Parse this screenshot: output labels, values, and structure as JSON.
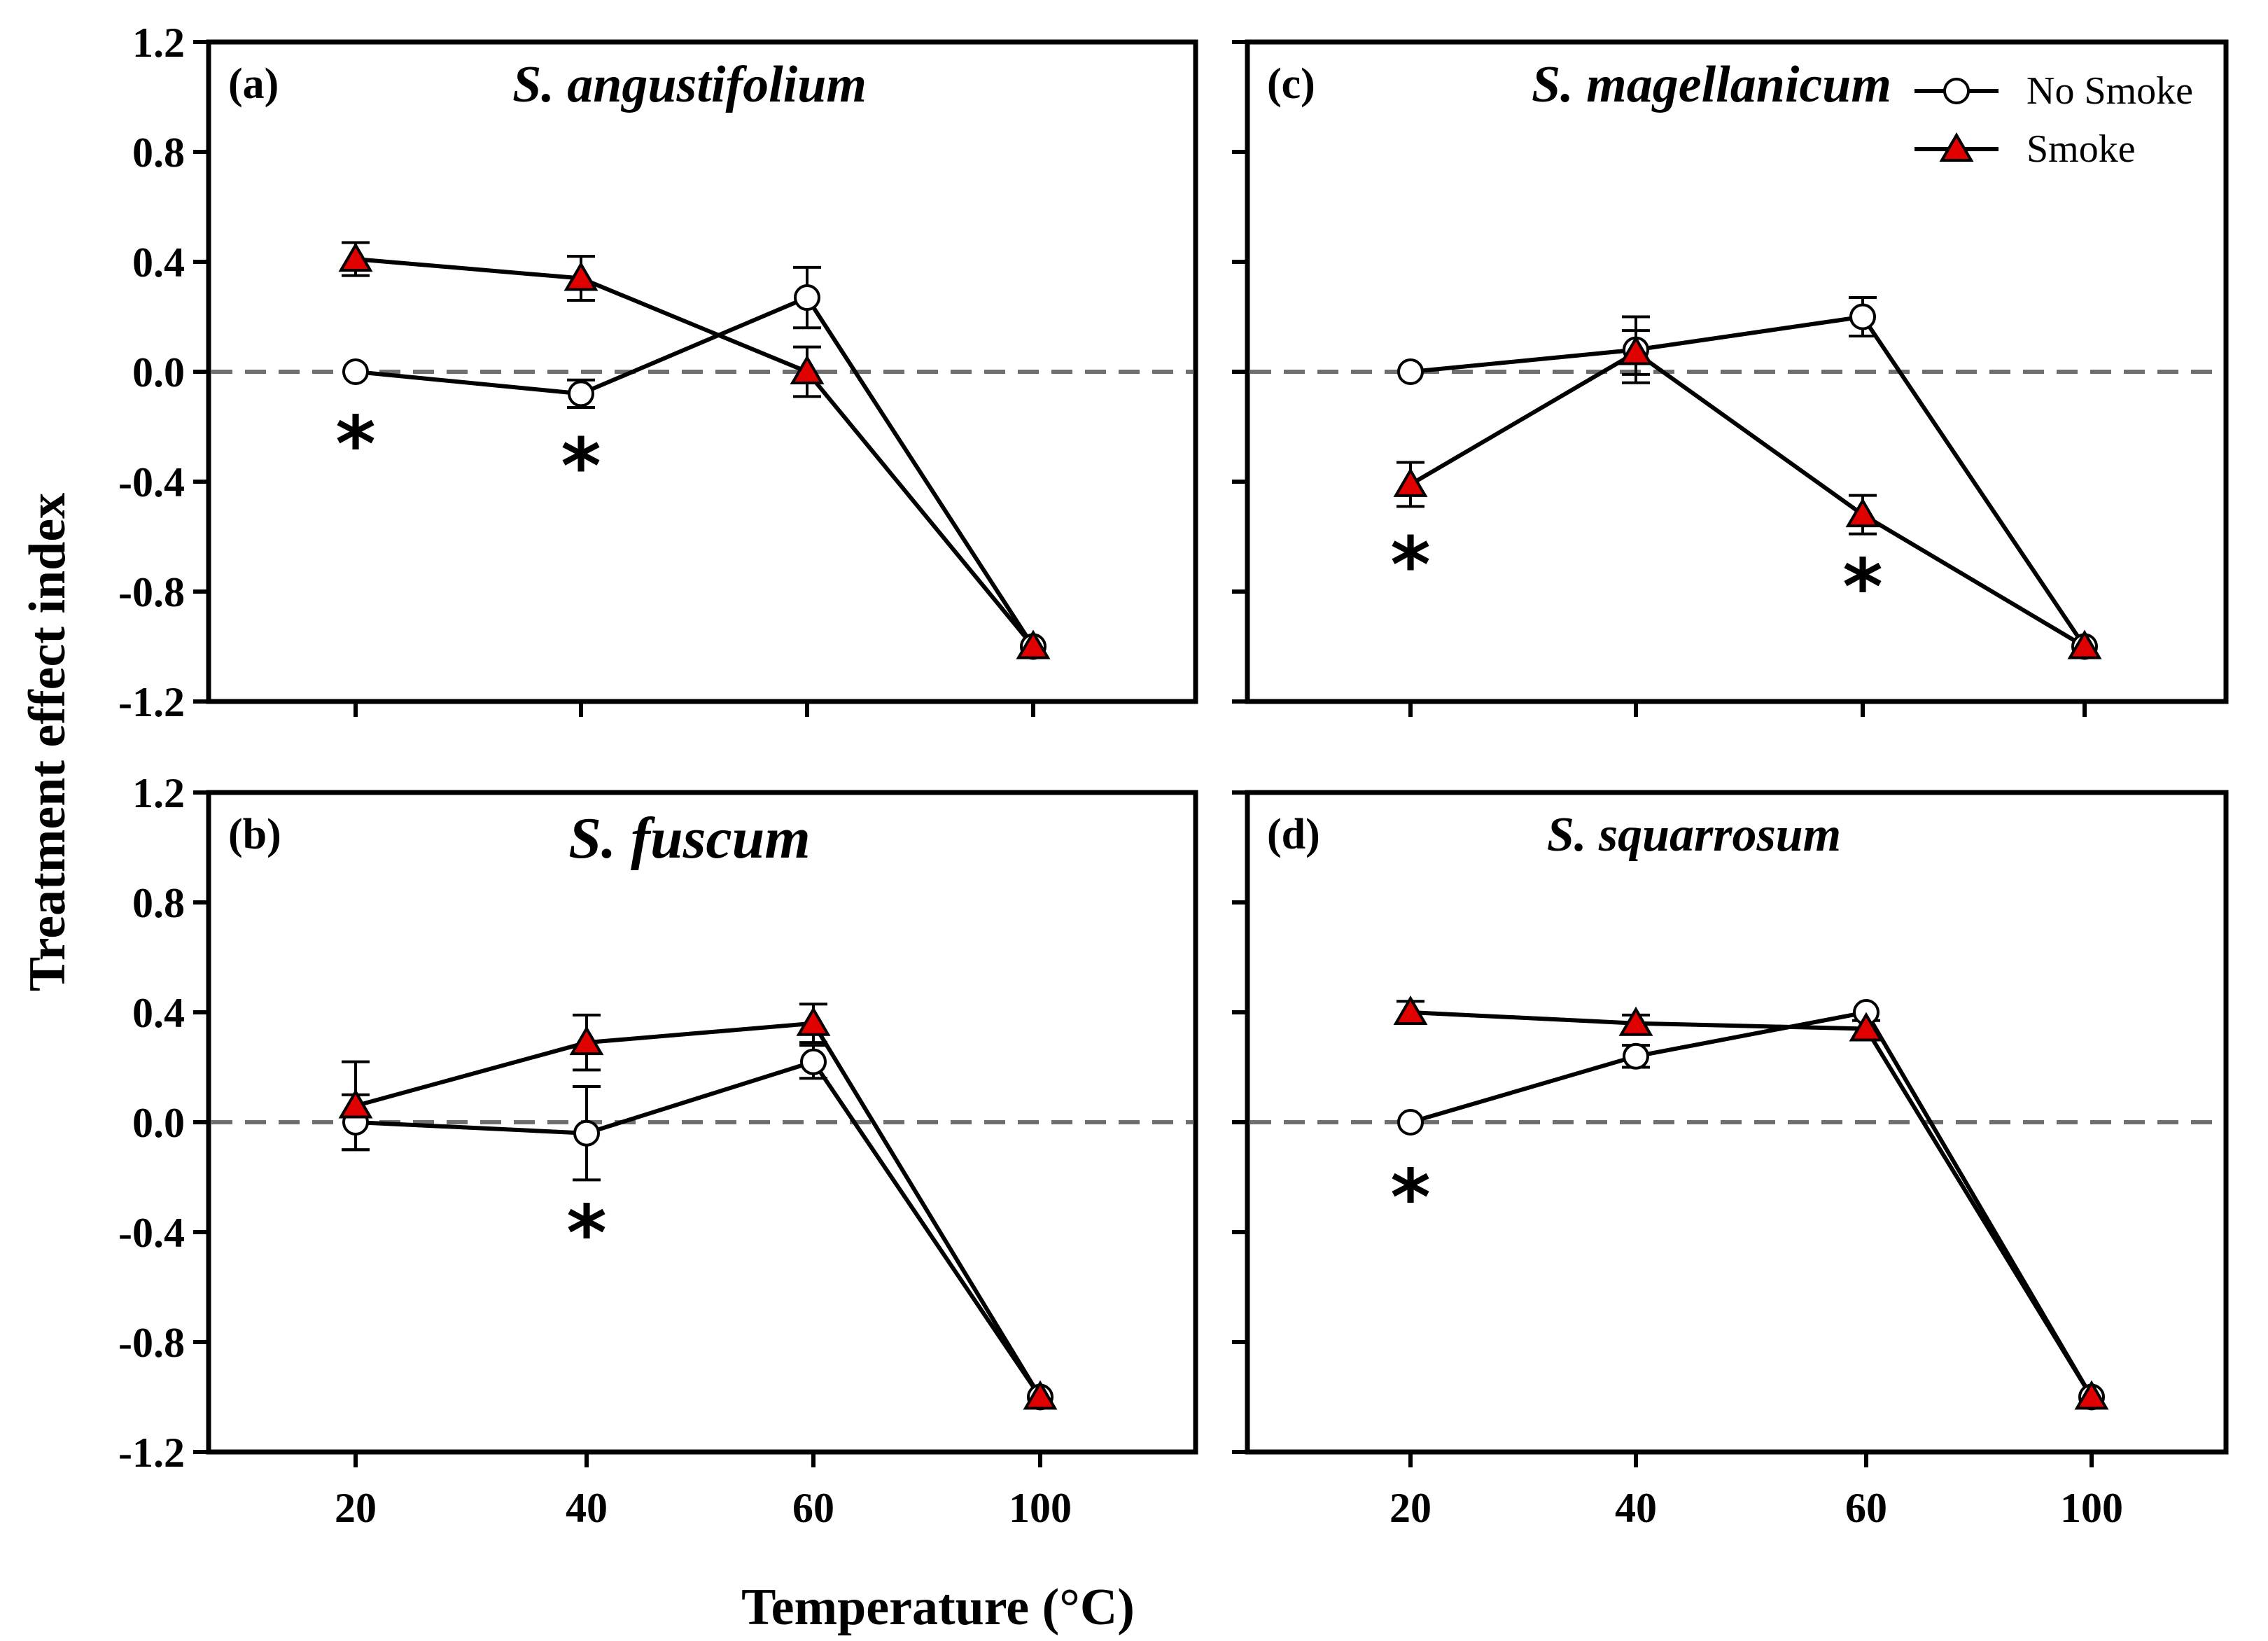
{
  "chart_data": [
    {
      "type": "line",
      "panel": "(a)",
      "title": "S. angustifolium",
      "categories": [
        "20",
        "40",
        "60",
        "100"
      ],
      "ylim": [
        -1.2,
        1.2
      ],
      "yticks": [
        "1.2",
        "0.8",
        "0.4",
        "0.0",
        "-0.4",
        "-0.8",
        "-1.2"
      ],
      "reference_line": 0.0,
      "series": [
        {
          "name": "No Smoke",
          "values": [
            0.0,
            -0.08,
            0.27,
            -1.0
          ],
          "errors": [
            0.02,
            0.05,
            0.11,
            0.02
          ]
        },
        {
          "name": "Smoke",
          "values": [
            0.41,
            0.34,
            0.0,
            -1.0
          ],
          "errors": [
            0.06,
            0.08,
            0.09,
            0.02
          ]
        }
      ],
      "significance": [
        {
          "category": "20",
          "value": -0.22,
          "label": "*"
        },
        {
          "category": "40",
          "value": -0.3,
          "label": "*"
        }
      ]
    },
    {
      "type": "line",
      "panel": "(b)",
      "title": "S. fuscum",
      "categories": [
        "20",
        "40",
        "60",
        "100"
      ],
      "ylim": [
        -1.2,
        1.2
      ],
      "yticks": [
        "1.2",
        "0.8",
        "0.4",
        "0.0",
        "-0.4",
        "-0.8",
        "-1.2"
      ],
      "reference_line": 0.0,
      "series": [
        {
          "name": "No Smoke",
          "values": [
            0.0,
            -0.04,
            0.22,
            -1.0
          ],
          "errors": [
            0.1,
            0.17,
            0.06,
            0.02
          ]
        },
        {
          "name": "Smoke",
          "values": [
            0.06,
            0.29,
            0.36,
            -1.0
          ],
          "errors": [
            0.16,
            0.1,
            0.07,
            0.02
          ]
        }
      ],
      "significance": [
        {
          "category": "40",
          "value": -0.36,
          "label": "*"
        }
      ]
    },
    {
      "type": "line",
      "panel": "(c)",
      "title": "S. magellanicum",
      "categories": [
        "20",
        "40",
        "60",
        "100"
      ],
      "ylim": [
        -1.2,
        1.2
      ],
      "yticks": [
        "1.2",
        "0.8",
        "0.4",
        "0.0",
        "-0.4",
        "-0.8",
        "-1.2"
      ],
      "reference_line": 0.0,
      "series": [
        {
          "name": "No Smoke",
          "values": [
            0.0,
            0.08,
            0.2,
            -1.0
          ],
          "errors": [
            0.02,
            0.12,
            0.07,
            0.02
          ]
        },
        {
          "name": "Smoke",
          "values": [
            -0.41,
            0.07,
            -0.52,
            -1.0
          ],
          "errors": [
            0.08,
            0.08,
            0.07,
            0.02
          ]
        }
      ],
      "significance": [
        {
          "category": "20",
          "value": -0.66,
          "label": "*"
        },
        {
          "category": "60",
          "value": -0.74,
          "label": "*"
        }
      ]
    },
    {
      "type": "line",
      "panel": "(d)",
      "title": "S. squarrosum",
      "categories": [
        "20",
        "40",
        "60",
        "100"
      ],
      "ylim": [
        -1.2,
        1.2
      ],
      "yticks": [
        "1.2",
        "0.8",
        "0.4",
        "0.0",
        "-0.4",
        "-0.8",
        "-1.2"
      ],
      "reference_line": 0.0,
      "series": [
        {
          "name": "No Smoke",
          "values": [
            0.0,
            0.24,
            0.4,
            -1.0
          ],
          "errors": [
            0.01,
            0.04,
            0.02,
            0.02
          ]
        },
        {
          "name": "Smoke",
          "values": [
            0.4,
            0.36,
            0.34,
            -1.0
          ],
          "errors": [
            0.04,
            0.03,
            0.03,
            0.02
          ]
        }
      ],
      "significance": [
        {
          "category": "20",
          "value": -0.23,
          "label": "*"
        }
      ]
    }
  ],
  "axes": {
    "ylabel": "Treatment effect index",
    "xlabel": "Temperature (°C)"
  },
  "legend": {
    "position": "top-right",
    "entries": [
      {
        "name": "No Smoke",
        "marker": "open-circle"
      },
      {
        "name": "Smoke",
        "marker": "red-triangle"
      }
    ]
  },
  "colors": {
    "smoke_fill": "#e00000",
    "no_smoke_fill": "#ffffff",
    "line": "#000000",
    "reference_line": "#6f6f6f"
  }
}
